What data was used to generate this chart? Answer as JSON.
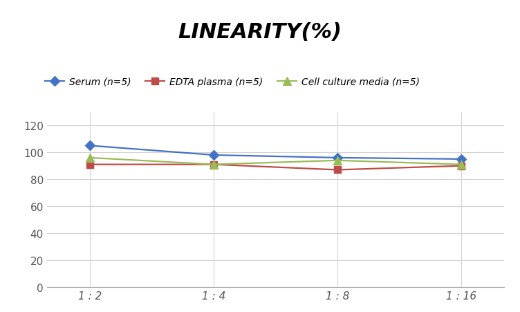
{
  "title": "LINEARITY(%)",
  "x_labels": [
    "1 : 2",
    "1 : 4",
    "1 : 8",
    "1 : 16"
  ],
  "x_positions": [
    0,
    1,
    2,
    3
  ],
  "series": [
    {
      "label": "Serum (n=5)",
      "values": [
        105,
        98,
        96,
        95
      ],
      "color": "#4472C4",
      "marker": "D",
      "markersize": 7,
      "linewidth": 1.6
    },
    {
      "label": "EDTA plasma (n=5)",
      "values": [
        91,
        91,
        87,
        90
      ],
      "color": "#BE4B48",
      "marker": "s",
      "markersize": 7,
      "linewidth": 1.6
    },
    {
      "label": "Cell culture media (n=5)",
      "values": [
        96,
        91,
        94,
        91
      ],
      "color": "#9BBB59",
      "marker": "^",
      "markersize": 8,
      "linewidth": 1.6
    }
  ],
  "ylim": [
    0,
    130
  ],
  "yticks": [
    0,
    20,
    40,
    60,
    80,
    100,
    120
  ],
  "background_color": "#ffffff",
  "grid_color": "#d3d3d3",
  "title_fontsize": 22,
  "legend_fontsize": 10,
  "tick_fontsize": 11
}
